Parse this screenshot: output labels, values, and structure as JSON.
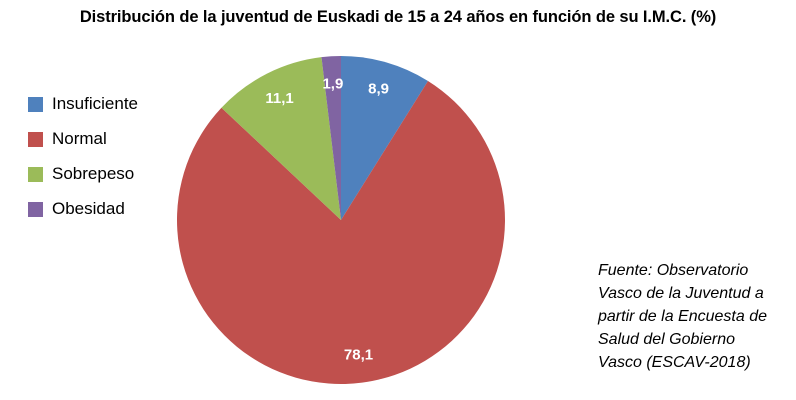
{
  "chart_data": {
    "type": "pie",
    "title": "Distribución de la juventud de Euskadi de 15 a 24 años en función de su I.M.C. (%)",
    "categories": [
      "Insuficiente",
      "Normal",
      "Sobrepeso",
      "Obesidad"
    ],
    "values": [
      8.9,
      78.1,
      11.1,
      1.9
    ],
    "value_labels": [
      "8,9",
      "78,1",
      "11,1",
      "1,9"
    ],
    "colors": [
      "#4F81BD",
      "#C0504D",
      "#9BBB59",
      "#8064A2"
    ],
    "unit": "%",
    "start_angle": "top",
    "direction": "clockwise",
    "legend_position": "left",
    "slice_label_color": "#FFFFFF",
    "grid": "off"
  },
  "source_note": {
    "lines": [
      "Fuente: Observatorio",
      "Vasco de la Juventud a",
      "partir de la Encuesta de",
      "Salud del Gobierno",
      "Vasco (ESCAV-2018)"
    ]
  }
}
